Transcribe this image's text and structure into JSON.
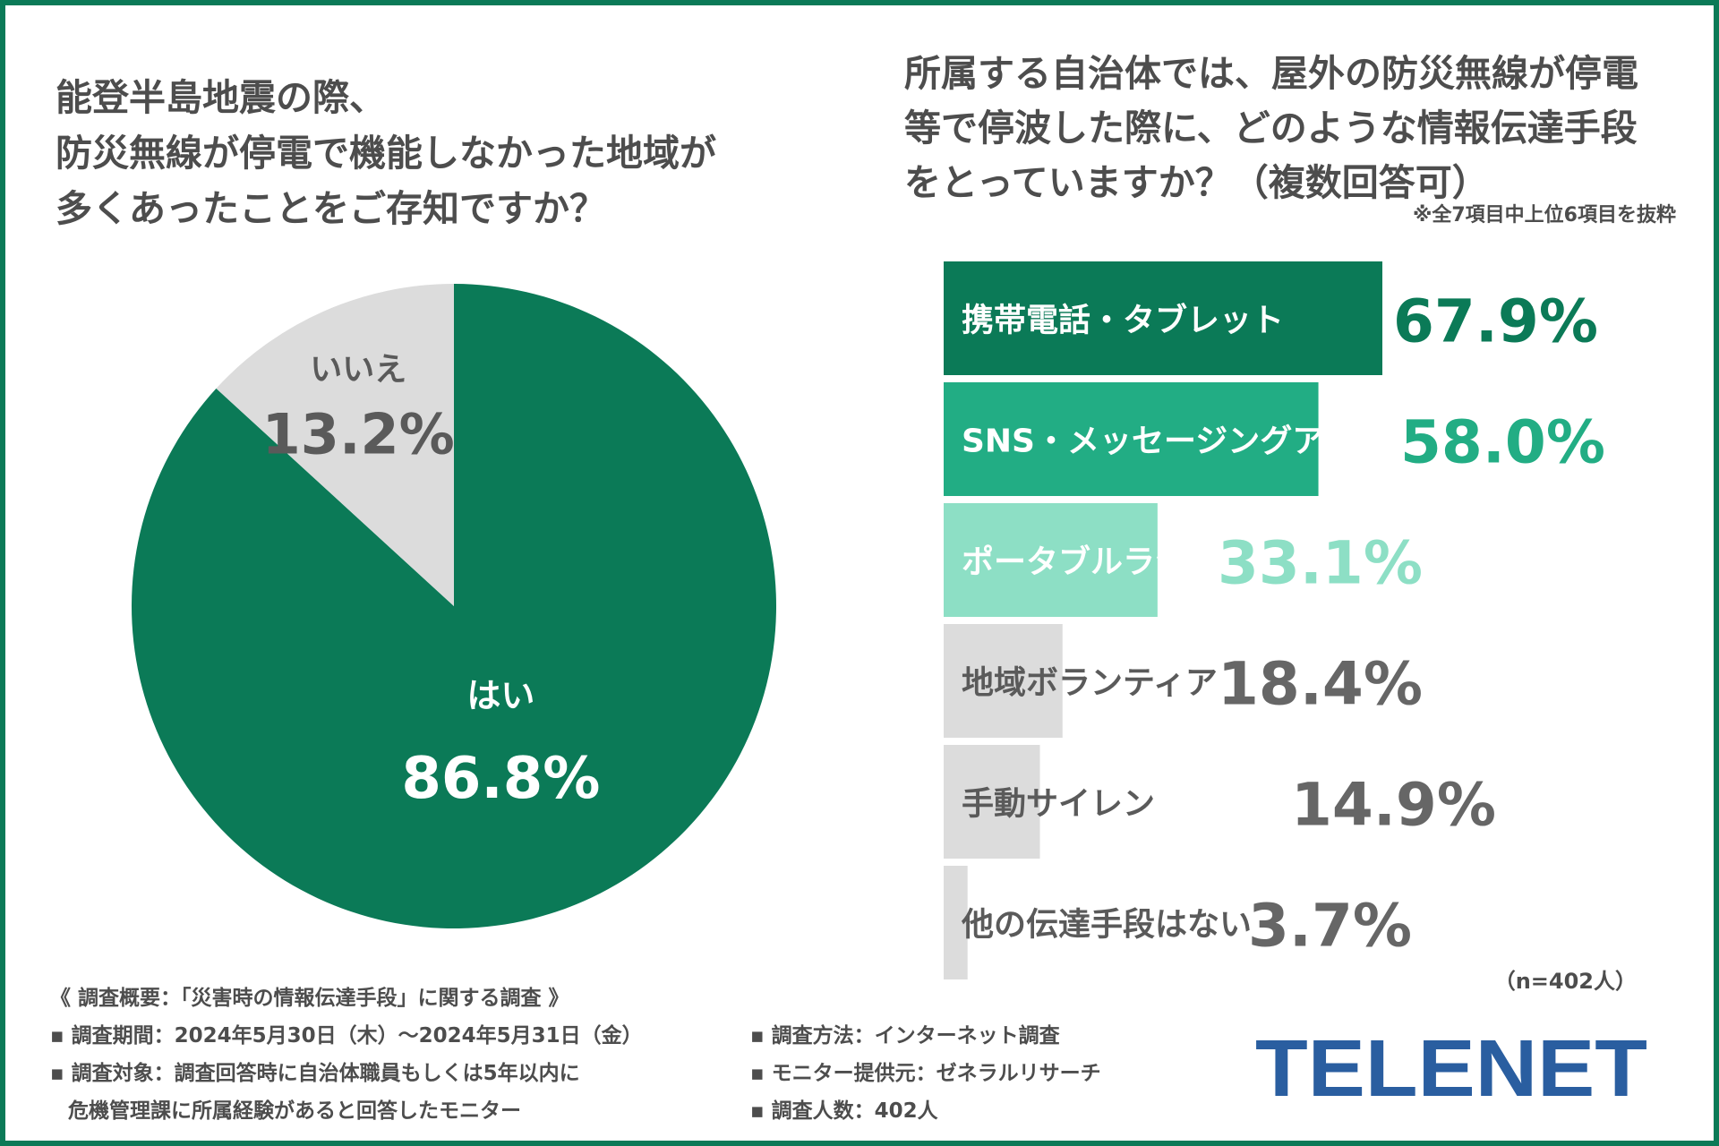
{
  "left_title": "能登半島地震の際、\n防災無線が停電で機能しなかった地域が\n多くあったことをご存知ですか？",
  "right_title": "所属する自治体では、屋外の防災無線が停電\n等で停波した際に、どのような情報伝達手段\nをとっていますか？（複数回答可）",
  "right_note": "※全7項目中上位6項目を抜粋",
  "sample_size": "（n=402人）",
  "survey": {
    "heading": "《 調査概要：「災害時の情報伝達手段」に関する調査 》",
    "period": "▪ 調査期間：2024年5月30日（木）〜2024年5月31日（金）",
    "target_1": "▪ 調査対象：調査回答時に自治体職員もしくは5年以内に",
    "target_2": "危機管理課に所属経験があると回答したモニター",
    "method": "▪ 調査方法：インターネット調査",
    "provider": "▪ モニター提供元：ゼネラルリサーチ",
    "count": "▪ 調査人数：402人"
  },
  "logo": {
    "text": "TELENET",
    "color": "#2a5ea0"
  },
  "colors": {
    "border": "#0b7a57",
    "text": "#4d4d4d"
  },
  "chart_data": [
    {
      "type": "pie",
      "start": "12 o'clock, clockwise",
      "slices": [
        {
          "label": "はい",
          "value": 86.8,
          "value_label": "86.8%",
          "color": "#0b7a57",
          "label_color": "#ffffff"
        },
        {
          "label": "いいえ",
          "value": 13.2,
          "value_label": "13.2%",
          "color": "#dcdcdc",
          "label_color": "#5a5a5a"
        }
      ]
    },
    {
      "type": "bar",
      "orientation": "horizontal",
      "xlim": [
        0,
        100
      ],
      "categories": [
        "携帯電話・タブレット",
        "SNS・メッセージングアプリ",
        "ポータブルラジオ",
        "地域ボランティア",
        "手動サイレン",
        "他の伝達手段はない"
      ],
      "values": [
        67.9,
        58.0,
        33.1,
        18.4,
        14.9,
        3.7
      ],
      "value_labels": [
        "67.9%",
        "58.0%",
        "33.1%",
        "18.4%",
        "14.9%",
        "3.7%"
      ],
      "bar_colors": [
        "#0b7a57",
        "#22ad84",
        "#8ddfc5",
        "#dcdcdc",
        "#dcdcdc",
        "#dcdcdc"
      ],
      "category_label_colors": [
        "#ffffff",
        "#ffffff",
        "#ffffff",
        "#5a5a5a",
        "#5a5a5a",
        "#5a5a5a"
      ],
      "value_label_colors": [
        "#0b7a57",
        "#22ad84",
        "#8ddfc5",
        "#666666",
        "#666666",
        "#666666"
      ]
    }
  ]
}
